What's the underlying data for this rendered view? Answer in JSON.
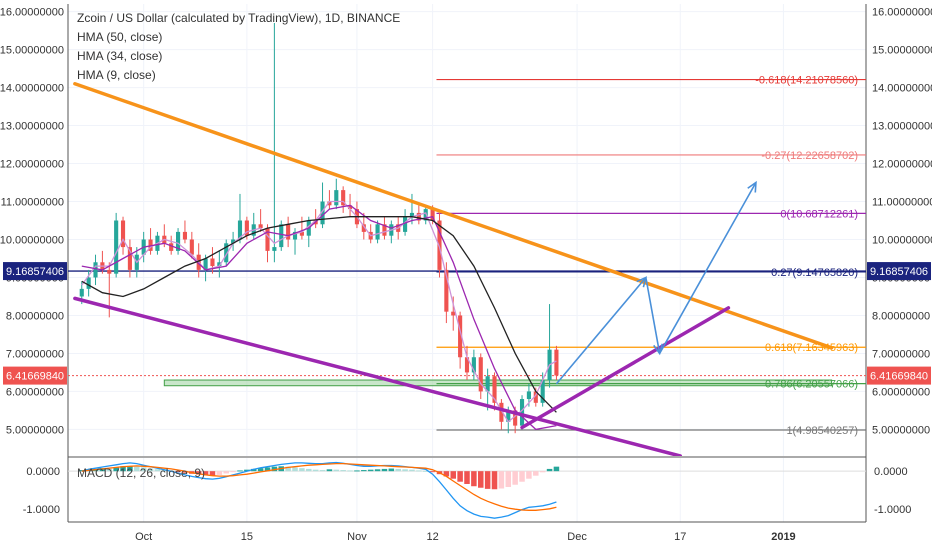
{
  "header": {
    "title": "Zcoin / US Dollar (calculated by TradingView), 1D, BINANCE",
    "indicators": [
      "HMA (50, close)",
      "HMA (34, close)",
      "HMA (9, close)"
    ]
  },
  "macd_label": "MACD (12, 26, close, 9)",
  "colors": {
    "up": "#26a69a",
    "down": "#ef5350",
    "hma50": "#222222",
    "hma34": "#9c27b0",
    "hma9": "#ce93d8",
    "orange_trend": "#f7931a",
    "purple_trend": "#9c27b0",
    "arrow": "#4a90d9",
    "macd_line": "#2196f3",
    "signal_line": "#ff6d00",
    "macd_pos": "#26a69a",
    "macd_neg": "#ef9a9a"
  },
  "chart_data": {
    "type": "candlestick",
    "y_axis": {
      "min": 4.3,
      "max": 16.2,
      "tick_labels": [
        "5.00000000",
        "6.00000000",
        "7.00000000",
        "8.00000000",
        "9.00000000",
        "10.00000000",
        "11.00000000",
        "12.00000000",
        "13.00000000",
        "14.00000000",
        "15.00000000",
        "16.00000000"
      ],
      "tick_values": [
        5,
        6,
        7,
        8,
        9,
        10,
        11,
        12,
        13,
        14,
        15,
        16
      ]
    },
    "macd_axis": {
      "min": -1.35,
      "max": 0.35,
      "tick_labels": [
        "0.0000",
        "-1.0000"
      ],
      "tick_values": [
        0,
        -1
      ]
    },
    "x_axis": {
      "labels": [
        "Oct",
        "15",
        "Nov",
        "12",
        "Dec",
        "17",
        "2019"
      ],
      "label_days": [
        9,
        24,
        40,
        51,
        72,
        87,
        102
      ]
    },
    "price_labels": {
      "left_blue": "9.16857406",
      "right_blue": "9.16857406",
      "current_left": "6.41669840",
      "current_right": "6.41669840",
      "current_price": 6.4167,
      "blue_level": 9.1686
    },
    "fib_levels": [
      {
        "label": "-0.618(14.21078560)",
        "price": 14.2108,
        "color": "#e53935"
      },
      {
        "label": "-0.27(12.22658702)",
        "price": 12.2266,
        "color": "#ef7a7a"
      },
      {
        "label": "0(10.68712261)",
        "price": 10.6871,
        "color": "#9c27b0"
      },
      {
        "label": "0.27(9.14765820)",
        "price": 9.1477,
        "color": "#1a237e"
      },
      {
        "label": "0.618(7.16345963)",
        "price": 7.1635,
        "color": "#ff9800"
      },
      {
        "label": "0.786(6.20557066)",
        "price": 6.2056,
        "color": "#43a047"
      },
      {
        "label": "1(4.98540257)",
        "price": 4.9854,
        "color": "#777777"
      }
    ],
    "green_band": {
      "from_day": 12,
      "to_day": 109,
      "low": 6.15,
      "high": 6.3
    },
    "candles": [
      {
        "day": 0,
        "o": 8.5,
        "h": 8.9,
        "l": 8.3,
        "c": 8.7
      },
      {
        "day": 1,
        "o": 8.7,
        "h": 9.2,
        "l": 8.5,
        "c": 9.0
      },
      {
        "day": 2,
        "o": 9.0,
        "h": 9.6,
        "l": 8.8,
        "c": 9.4
      },
      {
        "day": 3,
        "o": 9.4,
        "h": 9.7,
        "l": 9.1,
        "c": 9.2
      },
      {
        "day": 4,
        "o": 9.2,
        "h": 9.4,
        "l": 7.95,
        "c": 9.1
      },
      {
        "day": 5,
        "o": 9.1,
        "h": 10.7,
        "l": 9.0,
        "c": 10.5
      },
      {
        "day": 6,
        "o": 10.5,
        "h": 10.6,
        "l": 9.6,
        "c": 9.8
      },
      {
        "day": 7,
        "o": 9.8,
        "h": 10.0,
        "l": 9.0,
        "c": 9.2
      },
      {
        "day": 8,
        "o": 9.2,
        "h": 9.8,
        "l": 9.0,
        "c": 9.6
      },
      {
        "day": 9,
        "o": 9.6,
        "h": 10.2,
        "l": 9.4,
        "c": 10.0
      },
      {
        "day": 10,
        "o": 10.0,
        "h": 10.3,
        "l": 9.6,
        "c": 9.7
      },
      {
        "day": 11,
        "o": 9.7,
        "h": 10.2,
        "l": 9.6,
        "c": 10.1
      },
      {
        "day": 12,
        "o": 10.1,
        "h": 10.4,
        "l": 9.8,
        "c": 9.9
      },
      {
        "day": 13,
        "o": 9.9,
        "h": 10.1,
        "l": 9.6,
        "c": 9.7
      },
      {
        "day": 14,
        "o": 9.7,
        "h": 10.3,
        "l": 9.6,
        "c": 10.2
      },
      {
        "day": 15,
        "o": 10.2,
        "h": 10.5,
        "l": 9.9,
        "c": 10.0
      },
      {
        "day": 16,
        "o": 10.0,
        "h": 10.2,
        "l": 9.5,
        "c": 9.6
      },
      {
        "day": 17,
        "o": 9.6,
        "h": 9.9,
        "l": 9.0,
        "c": 9.2
      },
      {
        "day": 18,
        "o": 9.2,
        "h": 9.6,
        "l": 8.9,
        "c": 9.5
      },
      {
        "day": 19,
        "o": 9.5,
        "h": 9.8,
        "l": 9.1,
        "c": 9.3
      },
      {
        "day": 20,
        "o": 9.3,
        "h": 9.7,
        "l": 9.0,
        "c": 9.4
      },
      {
        "day": 21,
        "o": 9.4,
        "h": 10.0,
        "l": 9.3,
        "c": 9.9
      },
      {
        "day": 22,
        "o": 9.9,
        "h": 10.2,
        "l": 9.7,
        "c": 10.0
      },
      {
        "day": 23,
        "o": 10.0,
        "h": 11.2,
        "l": 9.9,
        "c": 10.5
      },
      {
        "day": 24,
        "o": 10.5,
        "h": 10.6,
        "l": 10.0,
        "c": 10.1
      },
      {
        "day": 25,
        "o": 10.1,
        "h": 10.7,
        "l": 10.0,
        "c": 10.4
      },
      {
        "day": 26,
        "o": 10.4,
        "h": 10.8,
        "l": 10.2,
        "c": 10.3
      },
      {
        "day": 27,
        "o": 10.3,
        "h": 10.4,
        "l": 9.4,
        "c": 9.7
      },
      {
        "day": 28,
        "o": 9.7,
        "h": 15.7,
        "l": 9.4,
        "c": 9.8
      },
      {
        "day": 29,
        "o": 9.8,
        "h": 10.5,
        "l": 9.7,
        "c": 10.4
      },
      {
        "day": 30,
        "o": 10.4,
        "h": 10.6,
        "l": 9.8,
        "c": 10.0
      },
      {
        "day": 31,
        "o": 10.0,
        "h": 10.3,
        "l": 9.6,
        "c": 10.2
      },
      {
        "day": 32,
        "o": 10.2,
        "h": 10.6,
        "l": 10.0,
        "c": 10.1
      },
      {
        "day": 33,
        "o": 10.1,
        "h": 10.6,
        "l": 9.8,
        "c": 10.5
      },
      {
        "day": 34,
        "o": 10.5,
        "h": 10.8,
        "l": 10.3,
        "c": 10.4
      },
      {
        "day": 35,
        "o": 10.4,
        "h": 11.5,
        "l": 10.3,
        "c": 11.0
      },
      {
        "day": 36,
        "o": 11.0,
        "h": 11.3,
        "l": 10.8,
        "c": 10.9
      },
      {
        "day": 37,
        "o": 10.9,
        "h": 11.6,
        "l": 10.8,
        "c": 11.3
      },
      {
        "day": 38,
        "o": 11.3,
        "h": 11.4,
        "l": 10.7,
        "c": 10.9
      },
      {
        "day": 39,
        "o": 10.9,
        "h": 11.2,
        "l": 10.6,
        "c": 10.8
      },
      {
        "day": 40,
        "o": 10.8,
        "h": 11.0,
        "l": 10.3,
        "c": 10.4
      },
      {
        "day": 41,
        "o": 10.4,
        "h": 10.7,
        "l": 10.0,
        "c": 10.2
      },
      {
        "day": 42,
        "o": 10.2,
        "h": 10.4,
        "l": 9.9,
        "c": 10.0
      },
      {
        "day": 43,
        "o": 10.0,
        "h": 10.5,
        "l": 9.9,
        "c": 10.4
      },
      {
        "day": 44,
        "o": 10.4,
        "h": 10.6,
        "l": 10.0,
        "c": 10.1
      },
      {
        "day": 45,
        "o": 10.1,
        "h": 10.5,
        "l": 9.9,
        "c": 10.4
      },
      {
        "day": 46,
        "o": 10.4,
        "h": 10.6,
        "l": 10.0,
        "c": 10.2
      },
      {
        "day": 47,
        "o": 10.2,
        "h": 10.8,
        "l": 10.1,
        "c": 10.6
      },
      {
        "day": 48,
        "o": 10.6,
        "h": 11.2,
        "l": 10.4,
        "c": 10.7
      },
      {
        "day": 49,
        "o": 10.7,
        "h": 10.9,
        "l": 10.4,
        "c": 10.5
      },
      {
        "day": 50,
        "o": 10.5,
        "h": 10.9,
        "l": 10.4,
        "c": 10.8
      },
      {
        "day": 51,
        "o": 10.8,
        "h": 10.9,
        "l": 10.4,
        "c": 10.5
      },
      {
        "day": 52,
        "o": 10.5,
        "h": 10.7,
        "l": 9.0,
        "c": 9.2
      },
      {
        "day": 53,
        "o": 9.2,
        "h": 9.4,
        "l": 7.8,
        "c": 8.1
      },
      {
        "day": 54,
        "o": 8.1,
        "h": 8.5,
        "l": 7.6,
        "c": 8.0
      },
      {
        "day": 55,
        "o": 8.0,
        "h": 8.1,
        "l": 6.6,
        "c": 6.9
      },
      {
        "day": 56,
        "o": 6.9,
        "h": 7.2,
        "l": 6.3,
        "c": 6.5
      },
      {
        "day": 57,
        "o": 6.5,
        "h": 7.1,
        "l": 6.3,
        "c": 6.9
      },
      {
        "day": 58,
        "o": 6.9,
        "h": 7.0,
        "l": 5.8,
        "c": 6.0
      },
      {
        "day": 59,
        "o": 6.0,
        "h": 6.6,
        "l": 5.5,
        "c": 6.4
      },
      {
        "day": 60,
        "o": 6.4,
        "h": 6.5,
        "l": 5.5,
        "c": 5.7
      },
      {
        "day": 61,
        "o": 5.7,
        "h": 5.8,
        "l": 5.0,
        "c": 5.2
      },
      {
        "day": 62,
        "o": 5.2,
        "h": 5.6,
        "l": 4.9,
        "c": 5.5
      },
      {
        "day": 63,
        "o": 5.5,
        "h": 5.6,
        "l": 4.9,
        "c": 5.1
      },
      {
        "day": 64,
        "o": 5.1,
        "h": 5.9,
        "l": 5.0,
        "c": 5.8
      },
      {
        "day": 65,
        "o": 5.8,
        "h": 6.2,
        "l": 5.6,
        "c": 6.0
      },
      {
        "day": 66,
        "o": 6.0,
        "h": 6.1,
        "l": 5.6,
        "c": 5.7
      },
      {
        "day": 67,
        "o": 5.7,
        "h": 6.5,
        "l": 5.6,
        "c": 6.3
      },
      {
        "day": 68,
        "o": 6.3,
        "h": 8.3,
        "l": 6.1,
        "c": 7.1
      },
      {
        "day": 69,
        "o": 7.1,
        "h": 7.2,
        "l": 6.3,
        "c": 6.42
      }
    ],
    "hma50": [
      [
        0,
        8.9
      ],
      [
        3,
        8.6
      ],
      [
        6,
        8.5
      ],
      [
        9,
        8.7
      ],
      [
        12,
        9.0
      ],
      [
        15,
        9.3
      ],
      [
        18,
        9.5
      ],
      [
        21,
        9.8
      ],
      [
        24,
        10.1
      ],
      [
        27,
        10.3
      ],
      [
        30,
        10.4
      ],
      [
        33,
        10.5
      ],
      [
        36,
        10.55
      ],
      [
        39,
        10.6
      ],
      [
        42,
        10.6
      ],
      [
        45,
        10.6
      ],
      [
        48,
        10.6
      ],
      [
        51,
        10.5
      ],
      [
        54,
        10.1
      ],
      [
        57,
        9.3
      ],
      [
        60,
        8.2
      ],
      [
        63,
        7.0
      ],
      [
        66,
        6.0
      ],
      [
        69,
        5.45
      ]
    ],
    "hma34": [
      [
        0,
        9.3
      ],
      [
        3,
        9.2
      ],
      [
        6,
        9.5
      ],
      [
        9,
        9.8
      ],
      [
        12,
        9.9
      ],
      [
        15,
        9.7
      ],
      [
        18,
        9.2
      ],
      [
        21,
        9.3
      ],
      [
        24,
        9.9
      ],
      [
        27,
        10.2
      ],
      [
        30,
        10.1
      ],
      [
        33,
        10.3
      ],
      [
        36,
        10.8
      ],
      [
        39,
        10.9
      ],
      [
        42,
        10.5
      ],
      [
        45,
        10.3
      ],
      [
        48,
        10.5
      ],
      [
        51,
        10.6
      ],
      [
        54,
        9.4
      ],
      [
        57,
        7.9
      ],
      [
        60,
        6.6
      ],
      [
        63,
        5.5
      ],
      [
        66,
        5.0
      ],
      [
        69,
        5.1
      ]
    ],
    "hma9": [
      [
        0,
        8.8
      ],
      [
        2,
        9.3
      ],
      [
        4,
        9.3
      ],
      [
        6,
        10.0
      ],
      [
        8,
        9.4
      ],
      [
        10,
        9.8
      ],
      [
        12,
        10.0
      ],
      [
        14,
        9.9
      ],
      [
        16,
        9.6
      ],
      [
        18,
        9.2
      ],
      [
        20,
        9.3
      ],
      [
        22,
        9.9
      ],
      [
        24,
        10.2
      ],
      [
        26,
        10.3
      ],
      [
        28,
        9.9
      ],
      [
        30,
        10.1
      ],
      [
        32,
        10.2
      ],
      [
        34,
        10.5
      ],
      [
        36,
        11.0
      ],
      [
        38,
        11.0
      ],
      [
        40,
        10.6
      ],
      [
        42,
        10.1
      ],
      [
        44,
        10.2
      ],
      [
        46,
        10.3
      ],
      [
        48,
        10.6
      ],
      [
        50,
        10.7
      ],
      [
        52,
        9.8
      ],
      [
        54,
        8.3
      ],
      [
        56,
        6.9
      ],
      [
        58,
        6.2
      ],
      [
        60,
        5.8
      ],
      [
        62,
        5.2
      ],
      [
        64,
        5.5
      ],
      [
        66,
        5.9
      ],
      [
        68,
        6.7
      ],
      [
        69,
        6.8
      ]
    ],
    "trend_lines": [
      {
        "name": "orange",
        "from": [
          -1,
          14.1
        ],
        "to": [
          109,
          7.15
        ],
        "color": "#f7931a"
      },
      {
        "name": "purple_lower",
        "from": [
          -1,
          8.45
        ],
        "to": [
          87,
          4.3
        ],
        "color": "#9c27b0"
      },
      {
        "name": "purple_upper",
        "from": [
          64,
          5.05
        ],
        "to": [
          94,
          8.2
        ],
        "color": "#9c27b0"
      }
    ],
    "arrows": [
      {
        "from": [
          69,
          6.2
        ],
        "to": [
          82,
          9.0
        ]
      },
      {
        "from": [
          82,
          9.0
        ],
        "to": [
          84,
          7.0
        ]
      },
      {
        "from": [
          84,
          7.0
        ],
        "to": [
          98,
          11.5
        ]
      }
    ],
    "macd_hist": [
      0.03,
      0.05,
      0.06,
      0.08,
      0.06,
      0.1,
      0.13,
      0.14,
      0.12,
      0.1,
      0.07,
      0.05,
      0.03,
      0.01,
      -0.02,
      -0.04,
      -0.07,
      -0.09,
      -0.11,
      -0.12,
      -0.1,
      -0.06,
      -0.02,
      0.02,
      0.04,
      0.06,
      0.08,
      0.1,
      0.12,
      0.13,
      0.12,
      0.1,
      0.08,
      0.06,
      0.04,
      0.03,
      0.05,
      0.04,
      0.03,
      0.02,
      0.02,
      0.03,
      0.04,
      0.05,
      0.06,
      0.07,
      0.06,
      0.05,
      0.04,
      0.02,
      0.01,
      -0.02,
      -0.08,
      -0.14,
      -0.2,
      -0.28,
      -0.34,
      -0.4,
      -0.44,
      -0.47,
      -0.48,
      -0.46,
      -0.42,
      -0.36,
      -0.28,
      -0.2,
      -0.12,
      -0.03,
      0.06,
      0.12
    ],
    "macd_line": [
      0.0,
      0.05,
      0.08,
      0.11,
      0.14,
      0.17,
      0.2,
      0.22,
      0.2,
      0.16,
      0.12,
      0.08,
      0.04,
      0.0,
      -0.05,
      -0.1,
      -0.14,
      -0.17,
      -0.2,
      -0.21,
      -0.19,
      -0.15,
      -0.1,
      -0.05,
      0.0,
      0.05,
      0.09,
      0.12,
      0.15,
      0.18,
      0.2,
      0.22,
      0.22,
      0.21,
      0.2,
      0.2,
      0.22,
      0.23,
      0.21,
      0.18,
      0.15,
      0.13,
      0.13,
      0.14,
      0.15,
      0.15,
      0.14,
      0.12,
      0.1,
      0.08,
      0.05,
      -0.08,
      -0.28,
      -0.5,
      -0.72,
      -0.92,
      -1.05,
      -1.14,
      -1.2,
      -1.22,
      -1.25,
      -1.22,
      -1.18,
      -1.1,
      -1.02,
      -0.96,
      -0.94,
      -0.92,
      -0.88,
      -0.82
    ],
    "signal_line": [
      0.0,
      0.02,
      0.04,
      0.06,
      0.08,
      0.1,
      0.12,
      0.13,
      0.14,
      0.13,
      0.12,
      0.1,
      0.08,
      0.06,
      0.03,
      0.0,
      -0.04,
      -0.07,
      -0.1,
      -0.12,
      -0.13,
      -0.13,
      -0.12,
      -0.1,
      -0.08,
      -0.05,
      -0.02,
      0.01,
      0.04,
      0.07,
      0.1,
      0.12,
      0.14,
      0.16,
      0.17,
      0.18,
      0.19,
      0.2,
      0.2,
      0.19,
      0.18,
      0.17,
      0.16,
      0.15,
      0.14,
      0.13,
      0.12,
      0.11,
      0.1,
      0.09,
      0.08,
      0.04,
      -0.04,
      -0.14,
      -0.26,
      -0.38,
      -0.5,
      -0.62,
      -0.72,
      -0.8,
      -0.87,
      -0.93,
      -0.98,
      -1.01,
      -1.03,
      -1.04,
      -1.04,
      -1.02,
      -1.0,
      -0.96
    ]
  }
}
